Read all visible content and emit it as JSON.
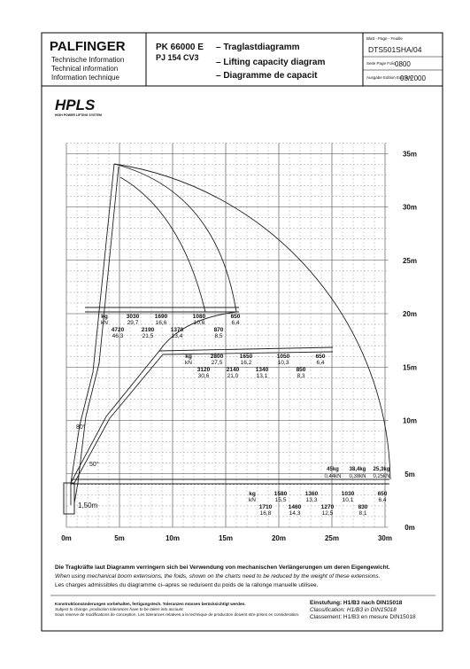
{
  "header": {
    "brand": "PALFINGER",
    "info_de": "Technische Information",
    "info_en": "Technical information",
    "info_fr": "Information technique",
    "model": "PK 66000 E",
    "model2": "PJ 154 CV3",
    "title_de": "– Traglastdiagramm",
    "title_en": "– Lifting capacity diagram",
    "title_fr": "– Diagramme de capacit",
    "sheet_label": "Blatt - Page - Feuille",
    "sheet": "DTS501SHA/04",
    "page_label": "Seite Page Folio",
    "page": "0800",
    "edition_label": "Ausgabe Edition Edizione",
    "edition": "03/2000"
  },
  "logo": {
    "name": "HPLS",
    "tagline": "HIGH POWER LIFTING SYSTEM"
  },
  "diagram": {
    "x_labels": [
      "0m",
      "5m",
      "10m",
      "15m",
      "20m",
      "25m",
      "30m"
    ],
    "y_labels": [
      "0m",
      "5m",
      "10m",
      "15m",
      "20m",
      "25m",
      "30m",
      "35m"
    ],
    "angles": [
      "80°",
      "50°"
    ],
    "base_height": "1,50m",
    "load_tables": [
      {
        "kg": "kg",
        "kN": "kN",
        "upper": [
          {
            "kg": "3030",
            "kN": "29,7"
          },
          {
            "kg": "1690",
            "kN": "16,6"
          },
          {
            "kg": "1080",
            "kN": "10,6"
          },
          {
            "kg": "650",
            "kN": "6,4"
          }
        ],
        "lower": [
          {
            "kg": "4720",
            "kN": "46,3"
          },
          {
            "kg": "2190",
            "kN": "21,5"
          },
          {
            "kg": "1370",
            "kN": "13,4"
          },
          {
            "kg": "870",
            "kN": "8,5"
          }
        ]
      },
      {
        "kg": "kg",
        "kN": "kN",
        "upper": [
          {
            "kg": "2800",
            "kN": "27,5"
          },
          {
            "kg": "1650",
            "kN": "16,2"
          },
          {
            "kg": "1050",
            "kN": "10,3"
          },
          {
            "kg": "650",
            "kN": "6,4"
          }
        ],
        "lower": [
          {
            "kg": "3120",
            "kN": "30,6"
          },
          {
            "kg": "2140",
            "kN": "21,0"
          },
          {
            "kg": "1340",
            "kN": "13,1"
          },
          {
            "kg": "850",
            "kN": "8,3"
          }
        ]
      },
      {
        "kg": "kg",
        "kN": "kN",
        "upper": [
          {
            "kg": "1580",
            "kN": "15,5"
          },
          {
            "kg": "1360",
            "kN": "13,3"
          },
          {
            "kg": "1030",
            "kN": "10,1"
          },
          {
            "kg": "650",
            "kN": "6,4"
          }
        ],
        "lower": [
          {
            "kg": "1710",
            "kN": "16,8"
          },
          {
            "kg": "1460",
            "kN": "14,3"
          },
          {
            "kg": "1270",
            "kN": "12,5"
          },
          {
            "kg": "830",
            "kN": "8,1"
          }
        ]
      }
    ],
    "extension_loads": [
      {
        "kg": "45kg",
        "kN": "0,44kN"
      },
      {
        "kg": "38,4kg",
        "kN": "0,38kN"
      },
      {
        "kg": "25,3kg",
        "kN": "0,25kN"
      }
    ]
  },
  "notes": {
    "de": "Die Tragkräfte laut Diagramm verringern sich bei Verwendung von mechanischen Verlängerungen um deren Eigengewicht.",
    "en": "When using mechanical boom extensions, the foids, shown on the charts need to be reduced by the weight of these extensions.",
    "fr": "Les charges admissibles du diagramme ci–apres se reduisent du poids de la rallonge manuelle utilisee."
  },
  "footer": {
    "de": "Konstruktionsänderungen vorbehalten, fertigungstech. Toleranzen müssen berücksichtigt werden.",
    "en": "Subject to change, production tolerances have to be taken into account.",
    "fr": "Sous reserve de modifications de conception. Les tolerances relatives a la technique de production doivent etre prises en consideration.",
    "class_de": "Einstufung: H1/B3 nach DIN15018",
    "class_en": "Classification: H1/B3 in DIN15018",
    "class_fr": "Classement: H1/B3 en mesure DIN15018"
  }
}
